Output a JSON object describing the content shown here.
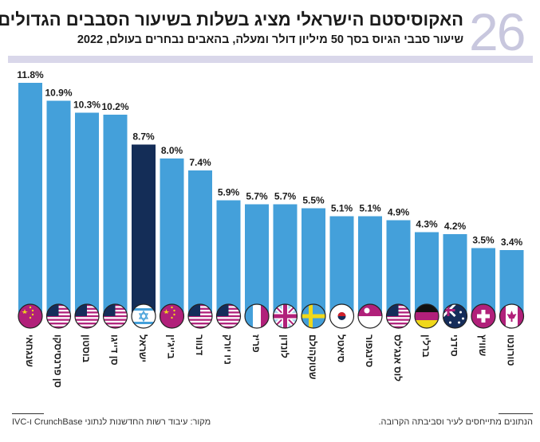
{
  "header": {
    "number": "26",
    "title": "האקוסיסטם הישראלי מציג בשלות בשיעור הסבבים הגדולים",
    "subtitle": "שיעור סבבי הגיוס בסך 50 מיליון דולר ומעלה, בהאבים נבחרים בעולם, 2022"
  },
  "colors": {
    "bar": "#44a0da",
    "highlight": "#142d57",
    "accent": "#b1207a",
    "band": "#d9d7ea"
  },
  "chart_data": {
    "type": "bar",
    "title": "האקוסיסטם הישראלי מציג בשלות בשיעור הסבבים הגדולים",
    "subtitle": "שיעור סבבי הגיוס בסך 50 מיליון דולר ומעלה, בהאבים נבחרים בעולם, 2022",
    "categories": [
      "שנגחאי",
      "סן פרנסיסקו",
      "בוסטון",
      "סן דייגו",
      "ישראל",
      "בייג'ין",
      "דנוור",
      "ניו יורק",
      "פריז",
      "לונדון",
      "שטוקהולם",
      "סיאטל",
      "סינגפור",
      "לוס אנג'לס",
      "ברלין",
      "סידני",
      "שוויץ",
      "טורונטו"
    ],
    "values": [
      11.8,
      10.9,
      10.3,
      10.2,
      8.7,
      8.0,
      7.4,
      5.9,
      5.7,
      5.7,
      5.5,
      5.1,
      5.1,
      4.9,
      4.3,
      4.2,
      3.5,
      3.4
    ],
    "value_labels": [
      "11.8%",
      "10.9%",
      "10.3%",
      "10.2%",
      "8.7%",
      "8.0%",
      "7.4%",
      "5.9%",
      "5.7%",
      "5.7%",
      "5.5%",
      "5.1%",
      "5.1%",
      "4.9%",
      "4.3%",
      "4.2%",
      "3.5%",
      "3.4%"
    ],
    "flags": [
      "china",
      "usa",
      "usa",
      "usa",
      "israel",
      "china",
      "usa",
      "usa",
      "france",
      "uk",
      "sweden",
      "south-korea",
      "singapore",
      "usa",
      "germany",
      "australia",
      "switzerland",
      "canada"
    ],
    "highlight": "ישראל",
    "ylim": [
      0,
      12
    ],
    "grid": false
  },
  "footer": {
    "note": "הנתונים מתייחסים לעיר וסביבתה הקרובה.",
    "source": "מקור: עיבוד רשות החדשנות לנתוני CrunchBase ו-IVC"
  }
}
